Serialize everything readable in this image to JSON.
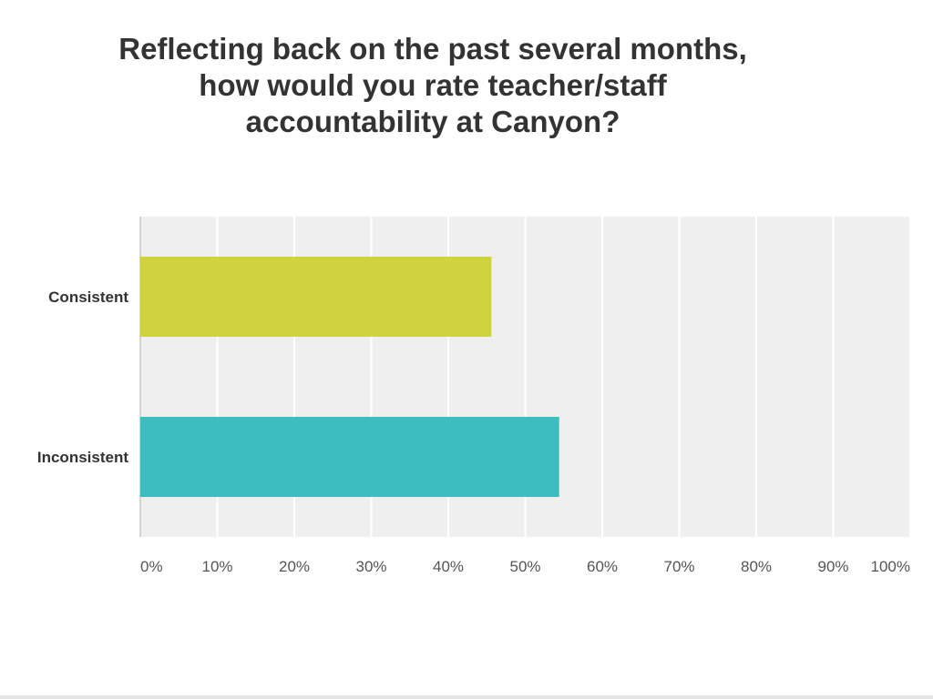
{
  "chart_data": {
    "type": "bar",
    "orientation": "horizontal",
    "title_lines": [
      "Reflecting back on the past several months,",
      "how would you rate teacher/staff",
      "accountability at Canyon?"
    ],
    "categories": [
      "Consistent",
      "Inconsistent"
    ],
    "values": [
      45.6,
      54.4
    ],
    "bar_colors": [
      "#cfd33d",
      "#3dbdbf"
    ],
    "xlim": [
      0,
      100
    ],
    "x_ticks": [
      0,
      10,
      20,
      30,
      40,
      50,
      60,
      70,
      80,
      90,
      100
    ],
    "x_tick_labels": [
      "0%",
      "10%",
      "20%",
      "30%",
      "40%",
      "50%",
      "60%",
      "70%",
      "80%",
      "90%",
      "100%"
    ],
    "grid": true,
    "legend": "none",
    "plot_background": "#efefef"
  }
}
